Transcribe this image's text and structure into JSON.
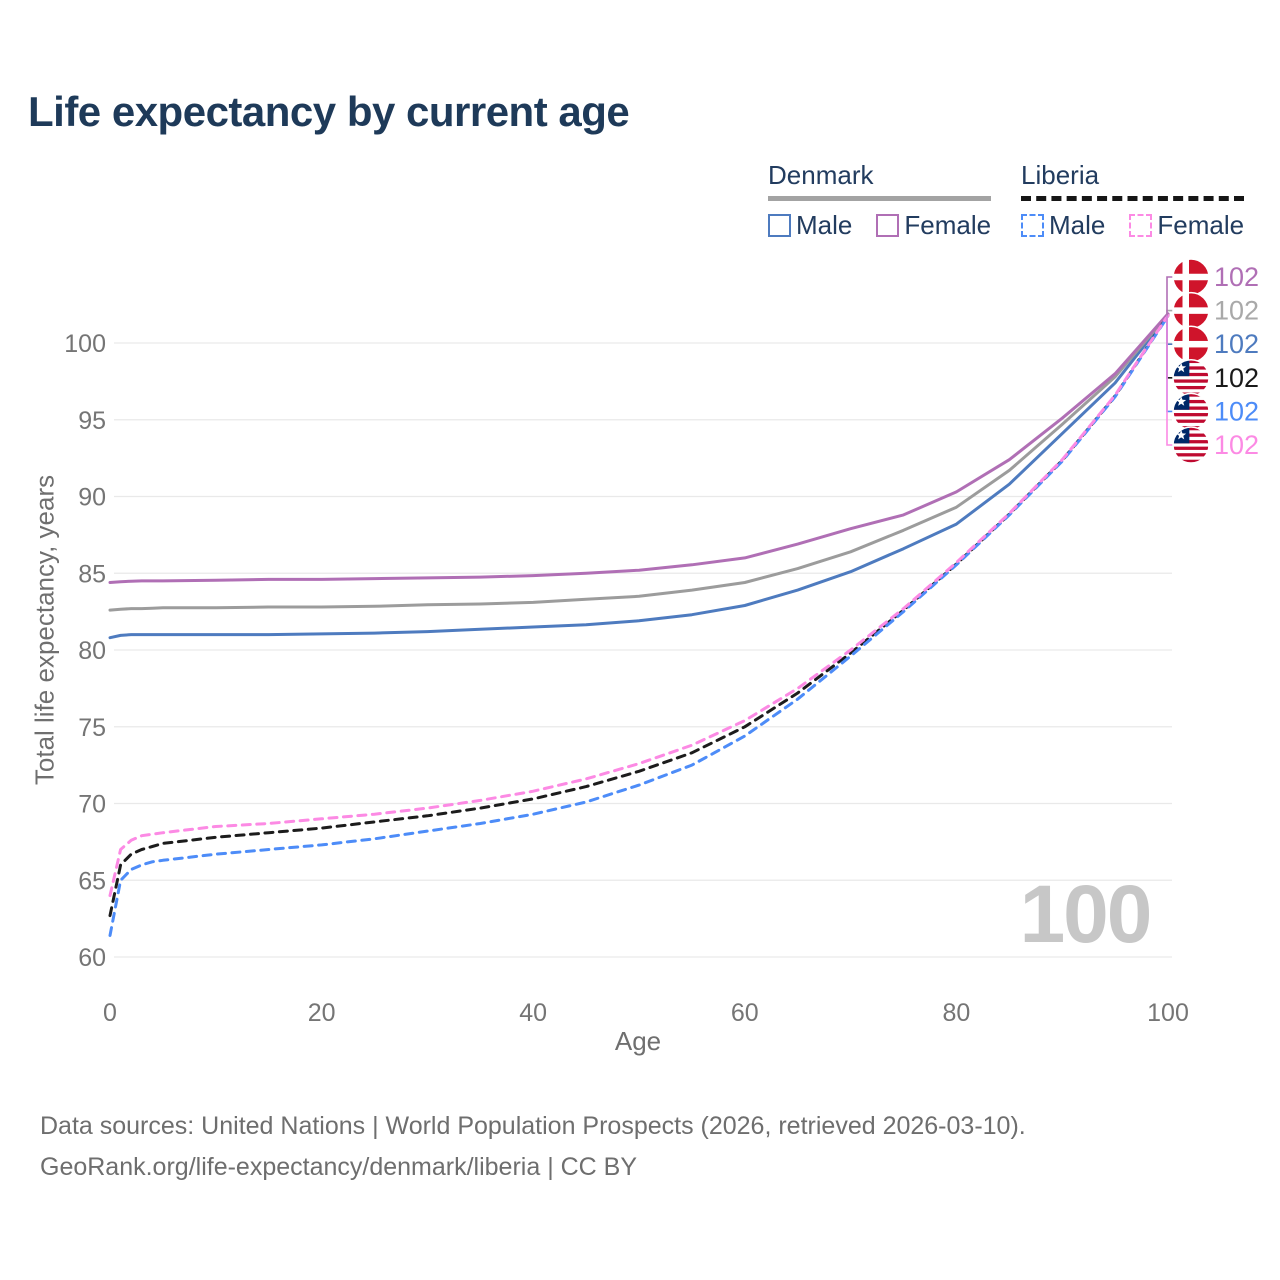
{
  "header": {
    "title": "Life expectancy by current age"
  },
  "legend": {
    "groups": [
      {
        "name": "Denmark",
        "line_style": "solid",
        "rule_color": "#a3a3a3",
        "items": [
          {
            "label": "Male",
            "color": "#4e7bbf",
            "dash": false
          },
          {
            "label": "Female",
            "color": "#b06fb5",
            "dash": false
          }
        ]
      },
      {
        "name": "Liberia",
        "line_style": "dashed",
        "rule_color": "#161616",
        "items": [
          {
            "label": "Male",
            "color": "#4d8cf8",
            "dash": true
          },
          {
            "label": "Female",
            "color": "#fc8ae4",
            "dash": true
          }
        ]
      }
    ]
  },
  "chart_data": {
    "type": "line",
    "title": "Life expectancy by current age",
    "xlabel": "Age",
    "ylabel": "Total life expectancy, years",
    "xlim": [
      0,
      100
    ],
    "ylim": [
      60,
      102
    ],
    "x_ticks": [
      0,
      20,
      40,
      60,
      80,
      100
    ],
    "y_ticks": [
      60,
      65,
      70,
      75,
      80,
      85,
      90,
      95,
      100
    ],
    "grid": "horizontal",
    "legend_position": "top-right",
    "watermark": "100",
    "x": [
      0,
      1,
      2,
      3,
      4,
      5,
      10,
      15,
      20,
      25,
      30,
      35,
      40,
      45,
      50,
      55,
      60,
      65,
      70,
      75,
      80,
      85,
      90,
      95,
      100
    ],
    "series": [
      {
        "name": "Denmark Male",
        "country": "Denmark",
        "sex": "Male",
        "color": "#4e7bbf",
        "dash": false,
        "values": [
          80.8,
          80.95,
          81.0,
          81.0,
          81.0,
          81.0,
          81.0,
          81.0,
          81.05,
          81.1,
          81.2,
          81.35,
          81.5,
          81.65,
          81.9,
          82.3,
          82.9,
          83.9,
          85.1,
          86.6,
          88.2,
          90.8,
          94.1,
          97.4,
          101.8
        ]
      },
      {
        "name": "Denmark Both sexes",
        "country": "Denmark",
        "sex": "Both",
        "color": "#9c9c9c",
        "dash": false,
        "values": [
          82.6,
          82.65,
          82.7,
          82.7,
          82.72,
          82.75,
          82.75,
          82.8,
          82.8,
          82.85,
          82.95,
          83.0,
          83.1,
          83.3,
          83.5,
          83.9,
          84.4,
          85.3,
          86.4,
          87.8,
          89.3,
          91.7,
          94.7,
          97.8,
          101.85
        ]
      },
      {
        "name": "Denmark Female",
        "country": "Denmark",
        "sex": "Female",
        "color": "#b06fb5",
        "dash": false,
        "values": [
          84.4,
          84.45,
          84.48,
          84.5,
          84.5,
          84.5,
          84.55,
          84.6,
          84.6,
          84.65,
          84.7,
          84.75,
          84.85,
          85.0,
          85.2,
          85.55,
          86.0,
          86.9,
          87.9,
          88.8,
          90.3,
          92.4,
          95.1,
          98.0,
          101.9
        ]
      },
      {
        "name": "Liberia Both sexes",
        "country": "Liberia",
        "sex": "Both",
        "color": "#1c1c1c",
        "dash": true,
        "values": [
          62.7,
          66.0,
          66.7,
          67.0,
          67.2,
          67.4,
          67.8,
          68.1,
          68.4,
          68.8,
          69.2,
          69.7,
          70.3,
          71.1,
          72.1,
          73.3,
          75.0,
          77.2,
          79.8,
          82.6,
          85.6,
          88.85,
          92.35,
          96.55,
          101.8
        ]
      },
      {
        "name": "Liberia Male",
        "country": "Liberia",
        "sex": "Male",
        "color": "#4d8cf8",
        "dash": true,
        "values": [
          61.4,
          65.0,
          65.7,
          66.0,
          66.2,
          66.3,
          66.7,
          67.0,
          67.3,
          67.7,
          68.2,
          68.7,
          69.3,
          70.1,
          71.2,
          72.5,
          74.4,
          76.8,
          79.6,
          82.5,
          85.55,
          88.8,
          92.3,
          96.5,
          101.75
        ]
      },
      {
        "name": "Liberia Female",
        "country": "Liberia",
        "sex": "Female",
        "color": "#fc8ae4",
        "dash": true,
        "values": [
          64.0,
          67.0,
          67.6,
          67.9,
          68.0,
          68.1,
          68.5,
          68.7,
          69.0,
          69.3,
          69.7,
          70.2,
          70.8,
          71.6,
          72.6,
          73.8,
          75.4,
          77.5,
          80.0,
          82.7,
          85.7,
          88.9,
          92.4,
          96.6,
          101.8
        ]
      }
    ],
    "end_labels": [
      {
        "flag": "denmark",
        "value": "102",
        "color": "#b06fb5",
        "series": "Denmark Female"
      },
      {
        "flag": "denmark",
        "value": "102",
        "color": "#a9a9a9",
        "series": "Denmark Both sexes"
      },
      {
        "flag": "denmark",
        "value": "102",
        "color": "#4e7bbf",
        "series": "Denmark Male"
      },
      {
        "flag": "liberia",
        "value": "102",
        "color": "#1a1a1a",
        "series": "Liberia Both sexes"
      },
      {
        "flag": "liberia",
        "value": "102",
        "color": "#4d8cf8",
        "series": "Liberia Male"
      },
      {
        "flag": "liberia",
        "value": "102",
        "color": "#fc8ae4",
        "series": "Liberia Female"
      }
    ],
    "flag_colors": {
      "denmark_red": "#cf142b",
      "liberia_red": "#bf0a30",
      "liberia_blue": "#002868"
    }
  },
  "footer": {
    "line1": "Data sources: United Nations | World Population Prospects (2026, retrieved 2026-03-10).",
    "line2": "GeoRank.org/life-expectancy/denmark/liberia | CC BY"
  }
}
